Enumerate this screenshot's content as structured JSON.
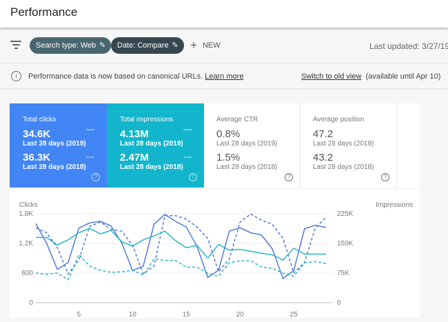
{
  "header": {
    "title": "Performance"
  },
  "toolbar": {
    "chips": [
      {
        "label": "Search type: Web",
        "color": "#4a6670"
      },
      {
        "label": "Date: Compare",
        "color": "#37474f"
      }
    ],
    "new_label": "NEW",
    "last_updated": "Last updated: 3/27/19"
  },
  "info": {
    "text": "Performance data is now based on canonical URLs.",
    "learn_more": "Learn more",
    "switch": "Switch to old view",
    "available": "(available until Apr 10)"
  },
  "metrics": [
    {
      "label": "Total clicks",
      "v1": "34.6K",
      "s1": "Last 28 days (2019)",
      "v2": "36.3K",
      "s2": "Last 28 days (2018)",
      "color": "#4285f4",
      "selected": true
    },
    {
      "label": "Total impressions",
      "v1": "4.13M",
      "s1": "Last 28 days (2019)",
      "v2": "2.47M",
      "s2": "Last 28 days (2018)",
      "color": "#12b5cb",
      "selected": true
    },
    {
      "label": "Average CTR",
      "v1": "0.8%",
      "s1": "Last 28 days (2019)",
      "v2": "1.5%",
      "s2": "Last 28 days (2018)",
      "selected": false
    },
    {
      "label": "Average position",
      "v1": "47.2",
      "s1": "Last 28 days (2019)",
      "v2": "43.2",
      "s2": "Last 28 days (2018)",
      "selected": false
    }
  ],
  "chart_data": {
    "type": "line",
    "ylabel_left": "Clicks",
    "ylabel_right": "Impressions",
    "ylim_left": [
      0,
      1800
    ],
    "ylim_right": [
      0,
      225000
    ],
    "yticks_left": [
      "0",
      "600",
      "1.2K",
      "1.8K"
    ],
    "yticks_right": [
      "0",
      "75K",
      "150K",
      "225K"
    ],
    "xticks": [
      "5",
      "10",
      "15",
      "20",
      "25"
    ],
    "x": [
      1,
      2,
      3,
      4,
      5,
      6,
      7,
      8,
      9,
      10,
      11,
      12,
      13,
      14,
      15,
      16,
      17,
      18,
      19,
      20,
      21,
      22,
      23,
      24,
      25,
      26,
      27,
      28
    ],
    "grid": true,
    "series": [
      {
        "axis": "left",
        "style": "solid",
        "color": "#5079d9",
        "values": [
          1600,
          1206,
          673,
          812,
          1508,
          1614,
          1647,
          1554,
          1206,
          650,
          742,
          1587,
          1786,
          1647,
          1531,
          1137,
          510,
          659,
          1447,
          1517,
          1415,
          1369,
          1090,
          487,
          650,
          1494,
          1568,
          1522
        ]
      },
      {
        "axis": "left",
        "style": "dashed",
        "color": "#5079d9",
        "values": [
          1517,
          1415,
          1113,
          580,
          858,
          1540,
          1633,
          1485,
          1447,
          1160,
          580,
          742,
          1763,
          1763,
          1693,
          1531,
          1299,
          626,
          881,
          1633,
          1795,
          1670,
          1587,
          1299,
          603,
          812,
          1508,
          1726
        ]
      },
      {
        "axis": "right",
        "style": "solid",
        "color": "#26b5c6",
        "values": [
          165000,
          165000,
          146000,
          159000,
          177000,
          188000,
          174000,
          183000,
          154000,
          143000,
          159000,
          169000,
          181000,
          157000,
          139000,
          145000,
          113000,
          147000,
          133000,
          135000,
          130000,
          125000,
          121000,
          108000,
          138000,
          123000,
          123000,
          123000
        ]
      },
      {
        "axis": "right",
        "style": "dashed",
        "color": "#26b5c6",
        "values": [
          75000,
          72000,
          75000,
          58000,
          122000,
          93000,
          82000,
          77000,
          78000,
          82000,
          70000,
          111000,
          107000,
          107000,
          90000,
          90000,
          75000,
          67000,
          101000,
          106000,
          106000,
          90000,
          87000,
          75000,
          67000,
          101000,
          104000,
          99000
        ]
      }
    ]
  }
}
